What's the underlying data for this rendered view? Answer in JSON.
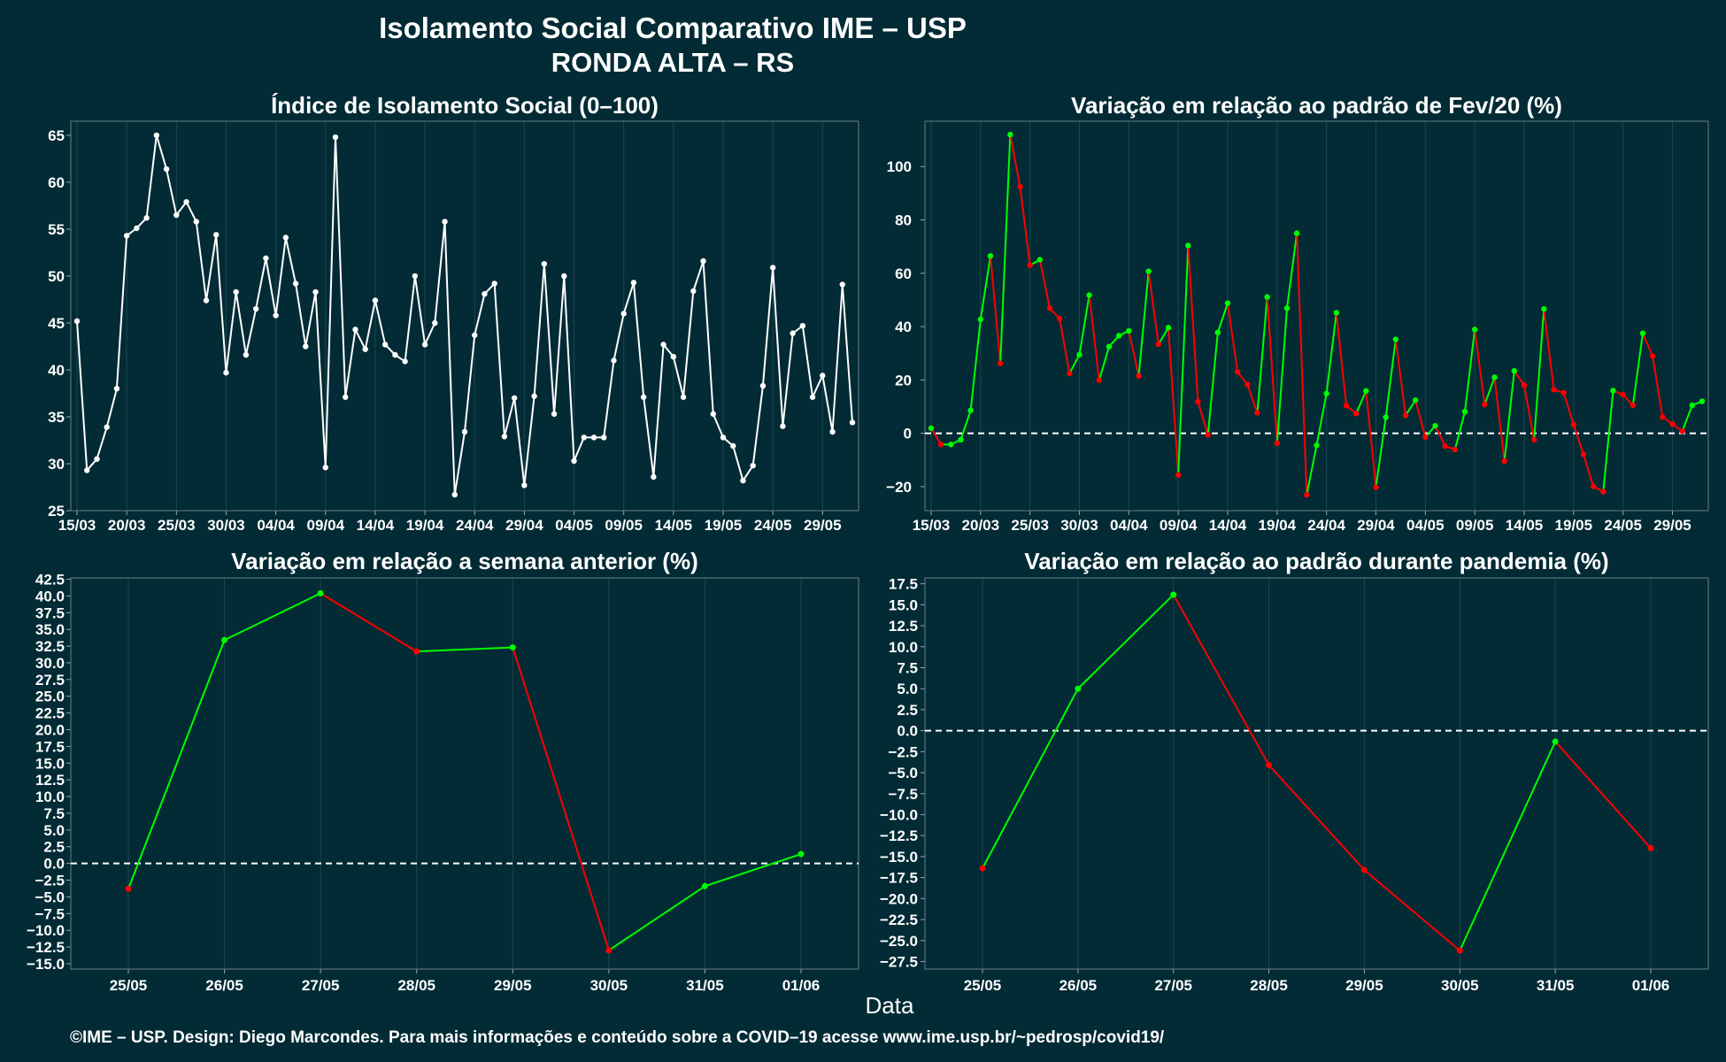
{
  "title_line1": "Isolamento Social Comparativo IME – USP",
  "title_line2": "RONDA ALTA – RS",
  "x_axis_label": "Data",
  "footer": "©IME – USP. Design: Diego Marcondes. Para mais informações e conteúdo sobre a COVID–19 acesse www.ime.usp.br/~pedrosp/covid19/",
  "colors": {
    "background": "#022b35",
    "white": "#ffffff",
    "positive": "#00ff00",
    "negative": "#ff0000",
    "reference": "#ffffff"
  },
  "chart_data": [
    {
      "type": "line",
      "title": "Índice de Isolamento Social (0–100)",
      "tick_labels_x": [
        "15/03",
        "20/03",
        "25/03",
        "30/03",
        "04/04",
        "09/04",
        "14/04",
        "19/04",
        "24/04",
        "29/04",
        "04/05",
        "09/05",
        "14/05",
        "19/05",
        "24/05",
        "29/05"
      ],
      "tick_labels_y": [
        "25",
        "30",
        "35",
        "40",
        "45",
        "50",
        "55",
        "60",
        "65"
      ],
      "ylim": [
        25,
        66.5
      ],
      "color_mode": "white",
      "reference_line": null,
      "values": [
        45.2,
        29.3,
        30.5,
        33.9,
        38.0,
        54.3,
        55.1,
        56.2,
        65.0,
        61.4,
        56.5,
        57.9,
        55.8,
        47.4,
        54.4,
        39.7,
        48.3,
        41.6,
        46.5,
        51.9,
        45.8,
        54.1,
        49.2,
        42.5,
        48.3,
        29.6,
        64.8,
        37.1,
        44.3,
        42.2,
        47.4,
        42.7,
        41.6,
        40.9,
        50.0,
        42.7,
        45.0,
        55.8,
        26.7,
        33.4,
        43.7,
        48.1,
        49.2,
        32.9,
        37.0,
        27.7,
        37.2,
        51.3,
        35.3,
        50.0,
        30.3,
        32.8,
        32.8,
        32.8,
        41.0,
        46.0,
        49.3,
        37.1,
        28.6,
        42.7,
        41.4,
        37.1,
        48.4,
        51.6,
        35.3,
        32.8,
        31.9,
        28.2,
        29.8,
        38.3,
        50.9,
        34.0,
        43.9,
        44.7,
        37.1,
        39.4,
        33.4,
        49.1,
        34.4
      ]
    },
    {
      "type": "line",
      "title": "Variação em relação ao padrão de Fev/20 (%)",
      "tick_labels_x": [
        "15/03",
        "20/03",
        "25/03",
        "30/03",
        "04/04",
        "09/04",
        "14/04",
        "19/04",
        "24/04",
        "29/04",
        "04/05",
        "09/05",
        "14/05",
        "19/05",
        "24/05",
        "29/05"
      ],
      "tick_labels_y": [
        "−20",
        "0",
        "20",
        "40",
        "60",
        "80",
        "100"
      ],
      "ylim": [
        -29,
        117
      ],
      "color_mode": "sign_change",
      "reference_line": 0,
      "values": [
        1.9,
        -4.2,
        -4.2,
        -2.4,
        8.6,
        42.7,
        66.5,
        26.2,
        112.0,
        92.4,
        63.0,
        65.1,
        46.9,
        43.0,
        22.4,
        29.5,
        51.8,
        19.9,
        32.5,
        36.6,
        38.4,
        21.5,
        60.7,
        33.4,
        39.6,
        -15.6,
        70.4,
        11.8,
        -0.6,
        37.8,
        48.8,
        23.0,
        18.3,
        7.7,
        51.1,
        -3.7,
        46.9,
        75.0,
        -23.1,
        -4.5,
        14.9,
        45.2,
        10.4,
        7.4,
        15.9,
        -20.2,
        6.0,
        35.2,
        6.7,
        12.4,
        -1.4,
        2.8,
        -4.8,
        -6.1,
        8.1,
        38.9,
        10.8,
        21.0,
        -10.4,
        23.4,
        18.0,
        -2.4,
        46.6,
        16.4,
        15.2,
        3.3,
        -7.9,
        -19.9,
        -21.9,
        16.0,
        14.5,
        10.5,
        37.5,
        28.9,
        6.1,
        3.5,
        0.8,
        10.5,
        12.0
      ]
    },
    {
      "type": "line",
      "title": "Variação em relação a semana anterior (%)",
      "categories": [
        "25/05",
        "26/05",
        "27/05",
        "28/05",
        "29/05",
        "30/05",
        "31/05",
        "01/06"
      ],
      "tick_labels_y": [
        "−15.0",
        "−12.5",
        "−10.0",
        "−7.5",
        "−5.0",
        "−2.5",
        "0.0",
        "2.5",
        "5.0",
        "7.5",
        "10.0",
        "12.5",
        "15.0",
        "17.5",
        "20.0",
        "22.5",
        "25.0",
        "27.5",
        "30.0",
        "32.5",
        "35.0",
        "37.5",
        "40.0",
        "42.5"
      ],
      "ylim": [
        -15.8,
        42.7
      ],
      "color_mode": "sign_change",
      "reference_line": 0,
      "values": [
        -3.8,
        33.4,
        40.4,
        31.7,
        32.3,
        -13.0,
        -3.4,
        1.4
      ]
    },
    {
      "type": "line",
      "title": "Variação em relação ao padrão durante pandemia (%)",
      "categories": [
        "25/05",
        "26/05",
        "27/05",
        "28/05",
        "29/05",
        "30/05",
        "31/05",
        "01/06"
      ],
      "tick_labels_y": [
        "−27.5",
        "−25.0",
        "−22.5",
        "−20.0",
        "−17.5",
        "−15.0",
        "−12.5",
        "−10.0",
        "−7.5",
        "−5.0",
        "−2.5",
        "0.0",
        "2.5",
        "5.0",
        "7.5",
        "10.0",
        "12.5",
        "15.0",
        "17.5"
      ],
      "ylim": [
        -28.4,
        18.2
      ],
      "color_mode": "sign_change",
      "reference_line": 0,
      "values": [
        -16.4,
        5.0,
        16.2,
        -4.1,
        -16.6,
        -26.2,
        -1.3,
        -14.0
      ]
    }
  ]
}
